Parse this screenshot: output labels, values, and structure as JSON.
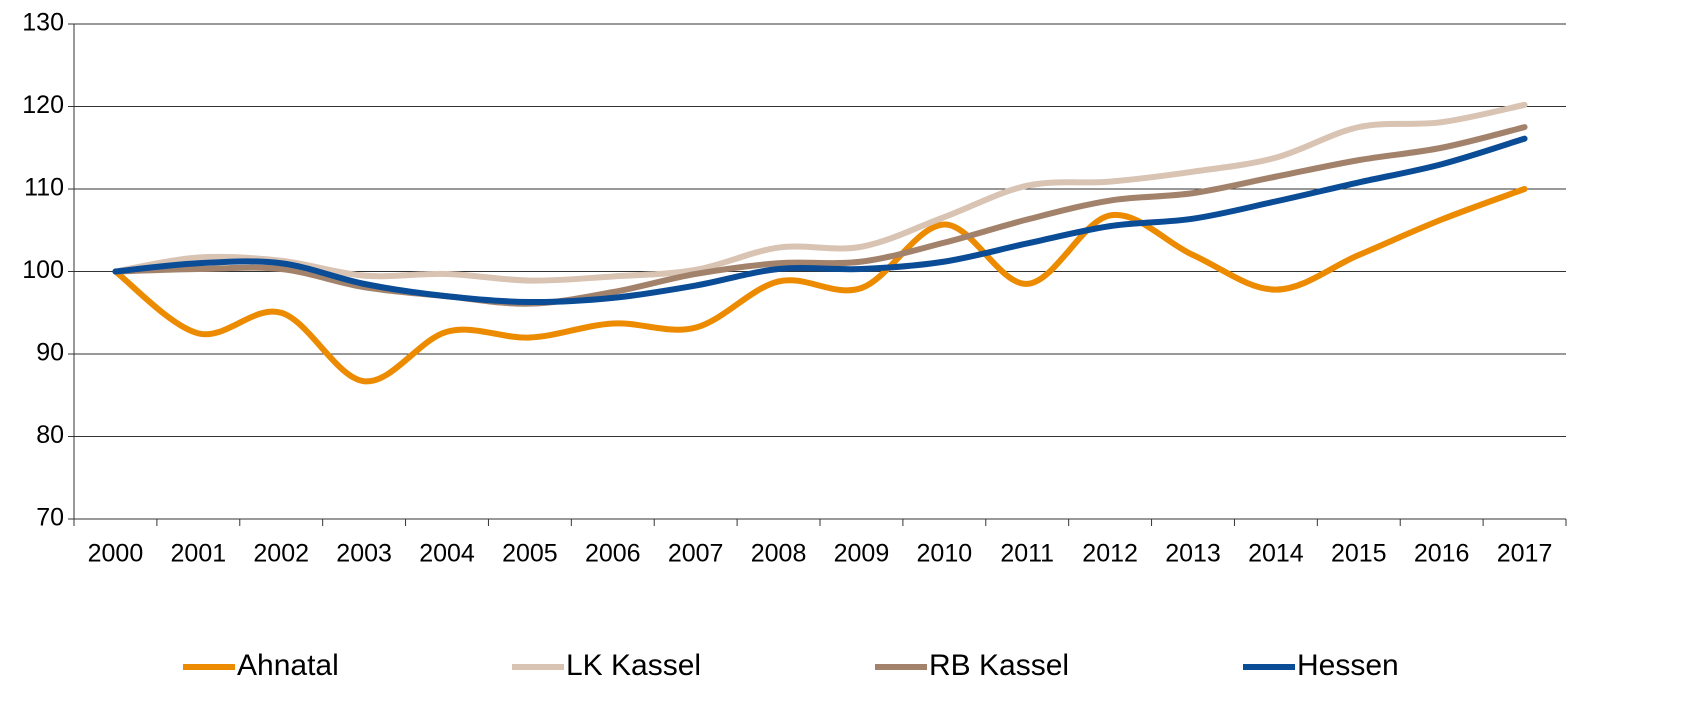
{
  "chart_data": {
    "type": "line",
    "categories": [
      "2000",
      "2001",
      "2002",
      "2003",
      "2004",
      "2005",
      "2006",
      "2007",
      "2008",
      "2009",
      "2010",
      "2011",
      "2012",
      "2013",
      "2014",
      "2015",
      "2016",
      "2017"
    ],
    "series": [
      {
        "name": "Ahnatal",
        "color": "#ed8b00",
        "values": [
          100,
          92.5,
          95,
          86.7,
          92.7,
          92,
          93.7,
          93.2,
          98.8,
          98,
          105.7,
          98.5,
          106.8,
          102,
          97.8,
          102,
          106.3,
          110
        ]
      },
      {
        "name": "LK Kassel",
        "color": "#d9c3b3",
        "values": [
          100,
          101.7,
          101.3,
          99.5,
          99.7,
          98.9,
          99.4,
          100.2,
          102.9,
          103,
          106.6,
          110.4,
          110.9,
          112.1,
          113.8,
          117.5,
          118.1,
          120.2
        ]
      },
      {
        "name": "RB Kassel",
        "color": "#a3826b",
        "values": [
          100,
          100.3,
          100.3,
          98.1,
          97,
          96.1,
          97.5,
          99.7,
          101,
          101.2,
          103.5,
          106.3,
          108.6,
          109.5,
          111.5,
          113.5,
          115,
          117.5
        ]
      },
      {
        "name": "Hessen",
        "color": "#0a4c96",
        "values": [
          100,
          101,
          101,
          98.5,
          97,
          96.3,
          96.8,
          98.3,
          100.3,
          100.3,
          101.2,
          103.4,
          105.5,
          106.4,
          108.5,
          110.8,
          113,
          116.1
        ]
      }
    ],
    "ylim": [
      70,
      130
    ],
    "yticks": [
      70,
      80,
      90,
      100,
      110,
      120,
      130
    ],
    "grid": true,
    "smooth": true,
    "legend": "bottom"
  }
}
